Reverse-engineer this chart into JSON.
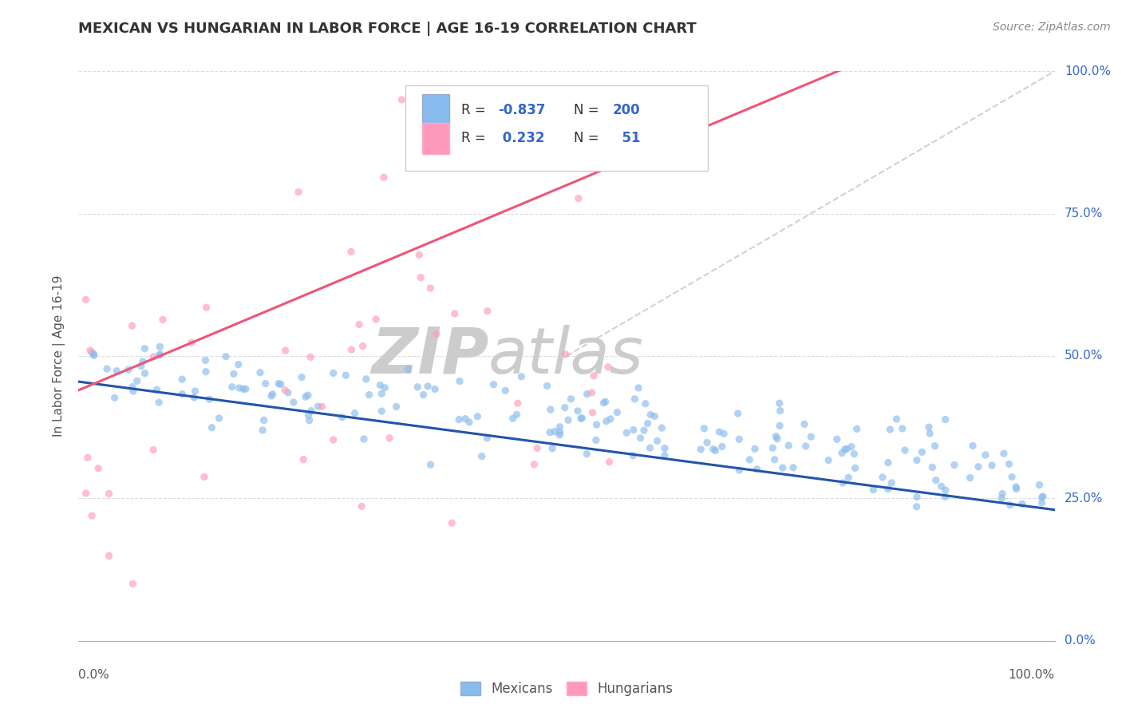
{
  "title": "MEXICAN VS HUNGARIAN IN LABOR FORCE | AGE 16-19 CORRELATION CHART",
  "source_text": "Source: ZipAtlas.com",
  "ylabel": "In Labor Force | Age 16-19",
  "xlim": [
    0.0,
    1.0
  ],
  "ylim": [
    0.0,
    1.0
  ],
  "mexican_color": "#88BBEE",
  "hungarian_color": "#FF99BB",
  "mexican_R": -0.837,
  "mexican_N": 200,
  "hungarian_R": 0.232,
  "hungarian_N": 51,
  "mexican_line_color": "#2255AA",
  "hungarian_line_color": "#EE5577",
  "ref_line_color": "#CCCCCC",
  "watermark_zip": "ZIP",
  "watermark_atlas": "atlas",
  "watermark_color": "#DDDDDD",
  "legend_label_1": "Mexicans",
  "legend_label_2": "Hungarians",
  "background_color": "#FFFFFF",
  "grid_color": "#DDDDDD",
  "title_color": "#333333",
  "axis_label_color": "#555555",
  "right_tick_color": "#3366CC",
  "scatter_alpha": 0.65,
  "scatter_size": 45,
  "mexican_line_intercept": 0.455,
  "mexican_line_slope": -0.225,
  "hungarian_line_intercept": 0.44,
  "hungarian_line_slope": 0.72
}
